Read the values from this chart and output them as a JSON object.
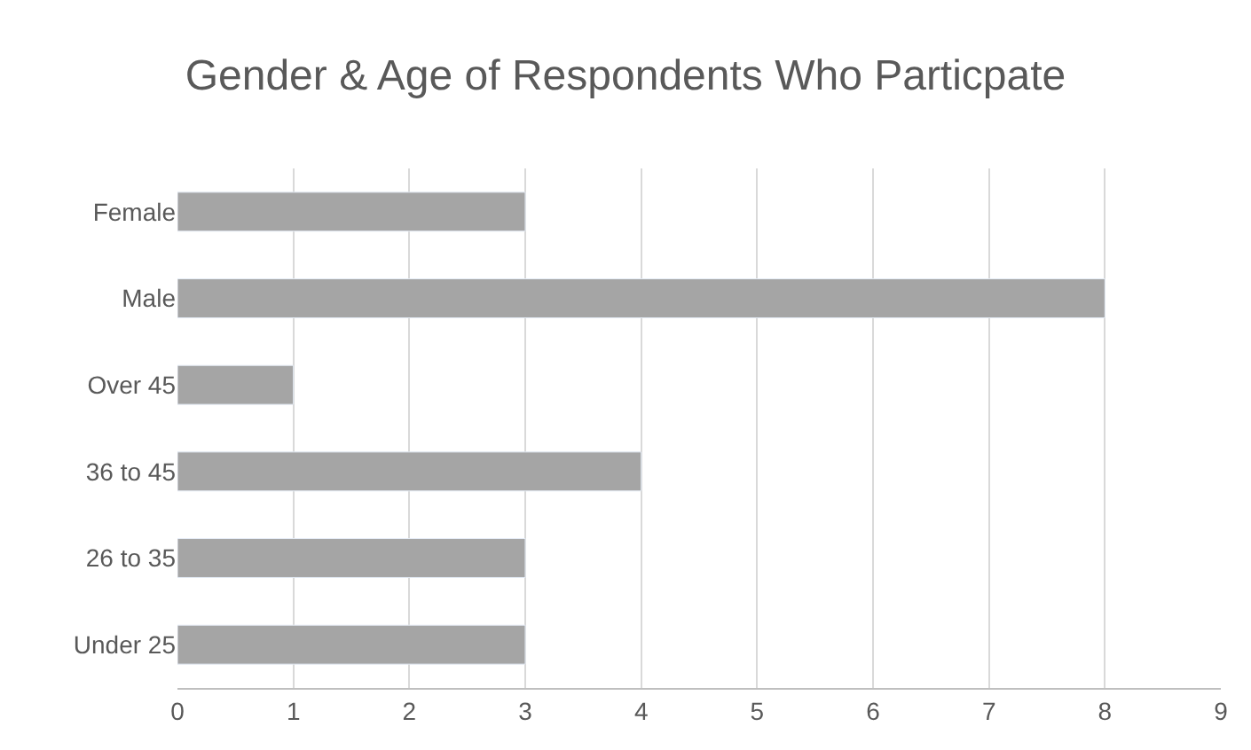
{
  "chart_data": {
    "type": "bar",
    "orientation": "horizontal",
    "title": "Gender & Age of Respondents Who Particpate",
    "categories": [
      "Female",
      "Male",
      "Over 45",
      "36 to 45",
      "26 to 35",
      "Under 25"
    ],
    "values": [
      3,
      8,
      1,
      4,
      3,
      3
    ],
    "color": "#a5a5a5",
    "xlim": [
      0,
      9
    ],
    "xticks": [
      0,
      1,
      2,
      3,
      4,
      5,
      6,
      7,
      8,
      9
    ],
    "grid": "x",
    "legend": false
  }
}
